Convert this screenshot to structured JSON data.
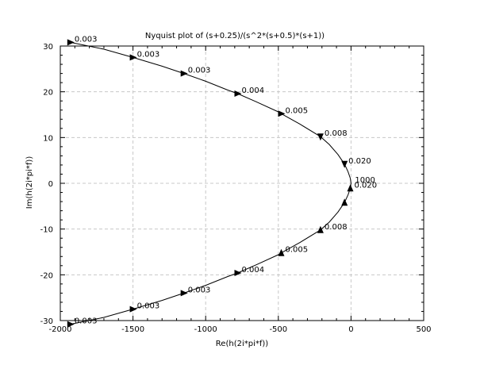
{
  "chart_data": {
    "type": "line",
    "title": "Nyquist plot of (s+0.25)/(s^2*(s+0.5)*(s+1))",
    "xlabel": "Re(h(2i*pi*f))",
    "ylabel": "Im(h(2i*pi*f))",
    "xlim": [
      -2000,
      500
    ],
    "ylim": [
      -30,
      30
    ],
    "xticks": [
      -2000,
      -1500,
      -1000,
      -500,
      0,
      500
    ],
    "yticks": [
      -30,
      -20,
      -10,
      0,
      10,
      20,
      30
    ],
    "xtick_labels": [
      "-2000",
      "-1500",
      "-1000",
      "-500",
      "0",
      "500"
    ],
    "ytick_labels": [
      "-30",
      "-20",
      "-10",
      "0",
      "10",
      "20",
      "30"
    ],
    "grid": true,
    "series": [
      {
        "x": [
          -1930,
          -1700,
          -1500,
          -1300,
          -1150,
          -1000,
          -850,
          -780,
          -650,
          -500,
          -480,
          -350,
          -210,
          -150,
          -90,
          -45,
          -20,
          -5,
          0,
          -5,
          -20,
          -45,
          -90,
          -150,
          -210,
          -350,
          -480,
          -500,
          -650,
          -780,
          -850,
          -1000,
          -1150,
          -1300,
          -1500,
          -1700,
          -1930
        ],
        "y": [
          30.8,
          29.3,
          27.5,
          25.6,
          24.0,
          22.3,
          20.4,
          19.6,
          17.8,
          15.6,
          15.2,
          12.9,
          10.2,
          8.5,
          6.3,
          4.2,
          2.5,
          1.1,
          0,
          -1.1,
          -2.5,
          -4.2,
          -6.3,
          -8.5,
          -10.2,
          -12.9,
          -15.2,
          -15.6,
          -17.8,
          -19.6,
          -20.4,
          -22.3,
          -24.0,
          -25.6,
          -27.5,
          -29.3,
          -30.8
        ]
      }
    ],
    "arrows": [
      {
        "x": -1930,
        "y": 30.8,
        "direction": "start"
      },
      {
        "x": -1500,
        "y": 27.5,
        "direction": "right"
      },
      {
        "x": -1150,
        "y": 24.0,
        "direction": "right"
      },
      {
        "x": -780,
        "y": 19.6,
        "direction": "right"
      },
      {
        "x": -480,
        "y": 15.2,
        "direction": "right"
      },
      {
        "x": -210,
        "y": 10.2,
        "direction": "down"
      },
      {
        "x": -45,
        "y": 4.2,
        "direction": "down"
      },
      {
        "x": -5,
        "y": -1.1,
        "direction": "up"
      },
      {
        "x": -45,
        "y": -4.2,
        "direction": "up"
      },
      {
        "x": -210,
        "y": -10.2,
        "direction": "up"
      },
      {
        "x": -480,
        "y": -15.2,
        "direction": "up"
      },
      {
        "x": -780,
        "y": -19.6,
        "direction": "right"
      },
      {
        "x": -1150,
        "y": -24.0,
        "direction": "right"
      },
      {
        "x": -1500,
        "y": -27.5,
        "direction": "right"
      },
      {
        "x": -1930,
        "y": -30.8,
        "direction": "start"
      }
    ],
    "annotations": [
      {
        "text": "0.003",
        "x": -1930,
        "y": 30.8
      },
      {
        "text": "0.003",
        "x": -1500,
        "y": 27.5
      },
      {
        "text": "0.003",
        "x": -1150,
        "y": 24.0
      },
      {
        "text": "0.004",
        "x": -780,
        "y": 19.6
      },
      {
        "text": "0.005",
        "x": -480,
        "y": 15.2
      },
      {
        "text": "0.008",
        "x": -210,
        "y": 10.2
      },
      {
        "text": "0.020",
        "x": -45,
        "y": 4.2
      },
      {
        "text": "1000",
        "x": 0,
        "y": 0
      },
      {
        "text": "0.020",
        "x": -5,
        "y": -1.1
      },
      {
        "text": "0.008",
        "x": -210,
        "y": -10.2
      },
      {
        "text": "0.005",
        "x": -480,
        "y": -15.2
      },
      {
        "text": "0.004",
        "x": -780,
        "y": -19.6
      },
      {
        "text": "0.003",
        "x": -1150,
        "y": -24.0
      },
      {
        "text": "0.003",
        "x": -1500,
        "y": -27.5
      },
      {
        "text": "0.003",
        "x": -1930,
        "y": -30.8
      }
    ]
  }
}
